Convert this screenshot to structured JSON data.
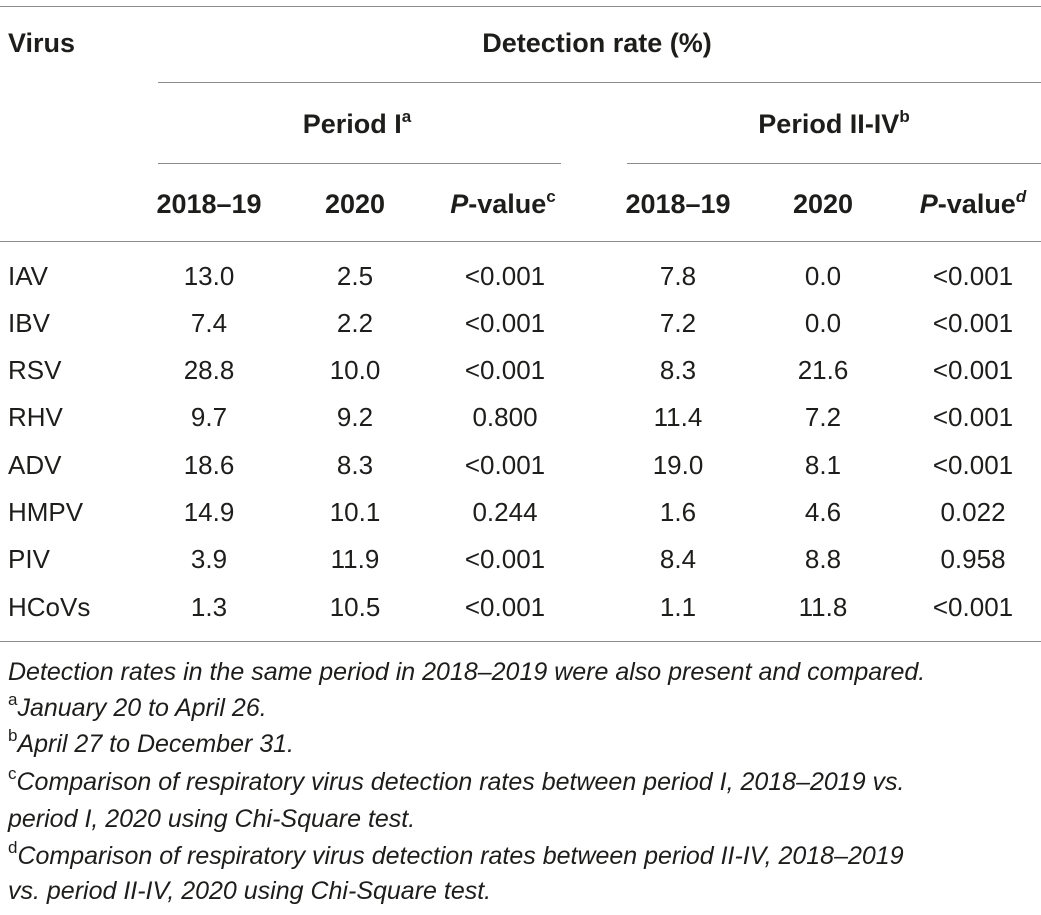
{
  "table": {
    "headers": {
      "virus": "Virus",
      "detection_rate": "Detection rate (%)",
      "period1": "Period I",
      "period1_sup": "a",
      "period2": "Period II-IV",
      "period2_sup": "b",
      "p_italic": "P",
      "p_rest": "-value",
      "p1_sup": "c",
      "p2_sup": "d",
      "y1": "2018–19",
      "y2": "2020",
      "y3": "2018–19",
      "y4": "2020"
    },
    "rows": [
      {
        "virus": "IAV",
        "p1_2018": "13.0",
        "p1_2020": "2.5",
        "p1_p": "<0.001",
        "p2_2018": "7.8",
        "p2_2020": "0.0",
        "p2_p": "<0.001"
      },
      {
        "virus": "IBV",
        "p1_2018": "7.4",
        "p1_2020": "2.2",
        "p1_p": "<0.001",
        "p2_2018": "7.2",
        "p2_2020": "0.0",
        "p2_p": "<0.001"
      },
      {
        "virus": "RSV",
        "p1_2018": "28.8",
        "p1_2020": "10.0",
        "p1_p": "<0.001",
        "p2_2018": "8.3",
        "p2_2020": "21.6",
        "p2_p": "<0.001"
      },
      {
        "virus": "RHV",
        "p1_2018": "9.7",
        "p1_2020": "9.2",
        "p1_p": "0.800",
        "p2_2018": "11.4",
        "p2_2020": "7.2",
        "p2_p": "<0.001"
      },
      {
        "virus": "ADV",
        "p1_2018": "18.6",
        "p1_2020": "8.3",
        "p1_p": "<0.001",
        "p2_2018": "19.0",
        "p2_2020": "8.1",
        "p2_p": "<0.001"
      },
      {
        "virus": "HMPV",
        "p1_2018": "14.9",
        "p1_2020": "10.1",
        "p1_p": "0.244",
        "p2_2018": "1.6",
        "p2_2020": "4.6",
        "p2_p": "0.022"
      },
      {
        "virus": "PIV",
        "p1_2018": "3.9",
        "p1_2020": "11.9",
        "p1_p": "<0.001",
        "p2_2018": "8.4",
        "p2_2020": "8.8",
        "p2_p": "0.958"
      },
      {
        "virus": "HCoVs",
        "p1_2018": "1.3",
        "p1_2020": "10.5",
        "p1_p": "<0.001",
        "p2_2018": "1.1",
        "p2_2020": "11.8",
        "p2_p": "<0.001"
      }
    ]
  },
  "footnotes": {
    "intro": "Detection rates in the same period in 2018–2019 were also present and compared.",
    "a_mark": "a",
    "a_text": "January 20 to April 26.",
    "b_mark": "b",
    "b_text": "April 27 to December 31.",
    "c_mark": "c",
    "c_text_1": "Comparison of respiratory virus detection rates between period I, 2018–2019 vs.",
    "c_text_2": "period I, 2020 using Chi-Square test.",
    "d_mark": "d",
    "d_text_1": "Comparison of respiratory virus detection rates between period II-IV, 2018–2019",
    "d_text_2": "vs. period II-IV, 2020 using Chi-Square test."
  }
}
